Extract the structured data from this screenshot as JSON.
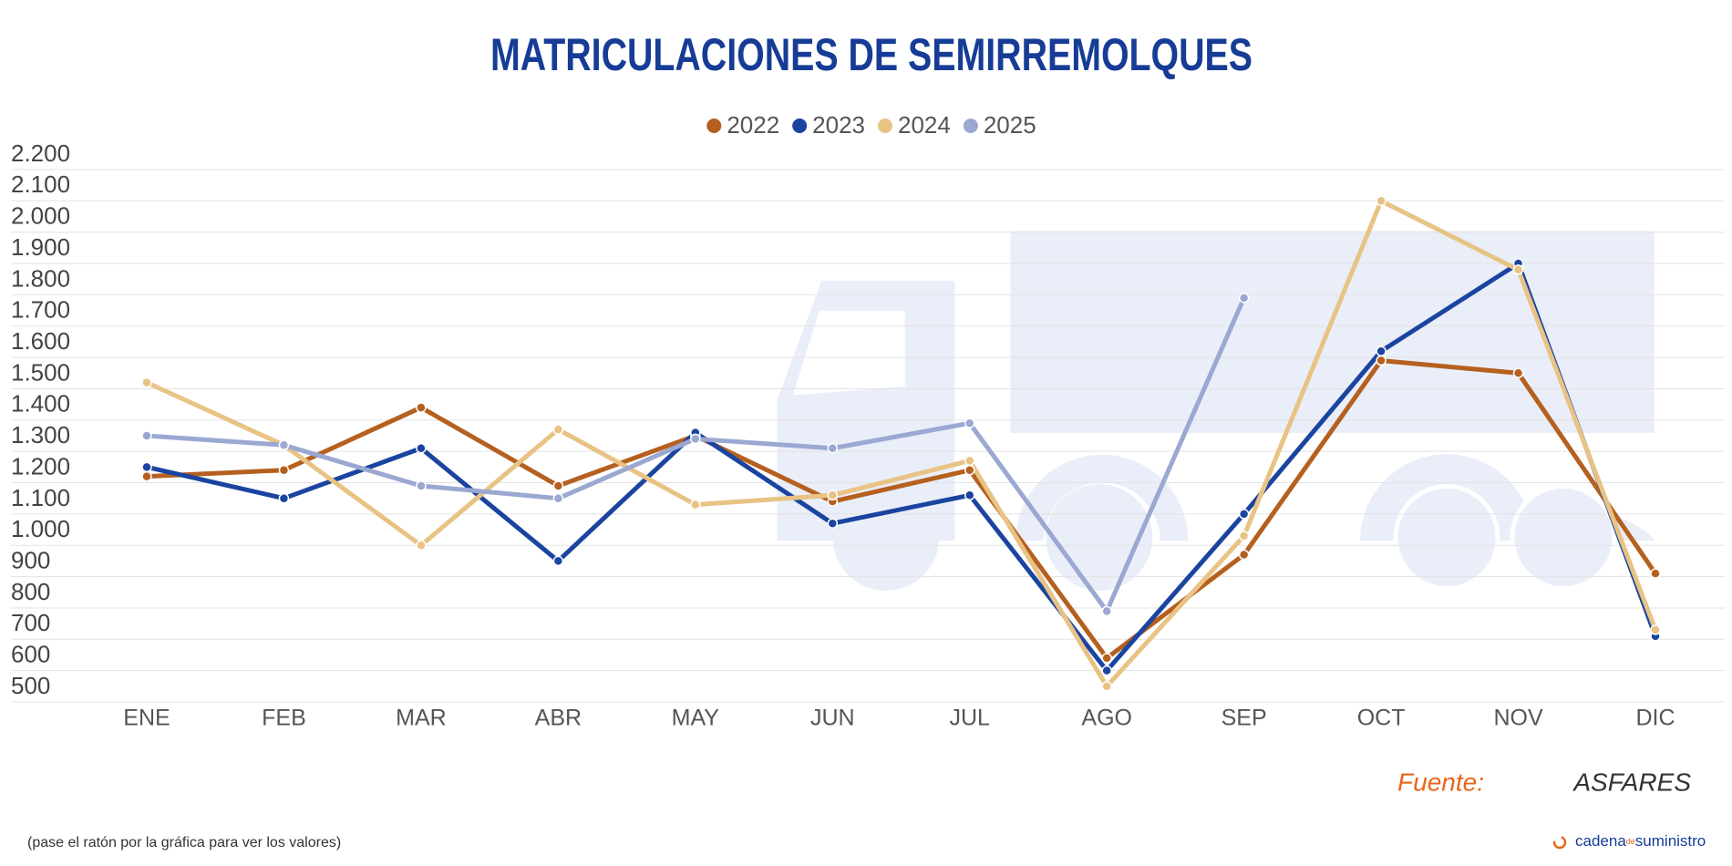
{
  "chart_data": {
    "type": "line",
    "title": "MATRICULACIONES DE SEMIRREMOLQUES",
    "categories": [
      "ENE",
      "FEB",
      "MAR",
      "ABR",
      "MAY",
      "JUN",
      "JUL",
      "AGO",
      "SEP",
      "OCT",
      "NOV",
      "DIC"
    ],
    "series": [
      {
        "name": "2022",
        "color": "#b5601f",
        "values": [
          1220,
          1240,
          1440,
          1190,
          1350,
          1140,
          1240,
          640,
          970,
          1590,
          1550,
          910
        ]
      },
      {
        "name": "2023",
        "color": "#1a44a0",
        "values": [
          1250,
          1150,
          1310,
          950,
          1360,
          1070,
          1160,
          600,
          1100,
          1620,
          1900,
          710
        ]
      },
      {
        "name": "2024",
        "color": "#e8c384",
        "values": [
          1520,
          1320,
          1000,
          1370,
          1130,
          1160,
          1270,
          550,
          1030,
          2100,
          1880,
          730
        ]
      },
      {
        "name": "2025",
        "color": "#9aa8d2",
        "values": [
          1350,
          1320,
          1190,
          1150,
          1340,
          1310,
          1390,
          790,
          1790,
          null,
          null,
          null
        ]
      }
    ],
    "ylim": [
      500,
      2200
    ],
    "yticks": [
      500,
      600,
      700,
      800,
      900,
      {
        "value": 1000,
        "label": "1.000"
      },
      {
        "value": 1100,
        "label": "1.100"
      },
      {
        "value": 1200,
        "label": "1.200"
      },
      {
        "value": 1300,
        "label": "1.300"
      },
      {
        "value": 1400,
        "label": "1.400"
      },
      {
        "value": 1500,
        "label": "1.500"
      },
      {
        "value": 1600,
        "label": "1.600"
      },
      {
        "value": 1700,
        "label": "1.700"
      },
      {
        "value": 1800,
        "label": "1.800"
      },
      {
        "value": 1900,
        "label": "1.900"
      },
      {
        "value": 2000,
        "label": "2.000"
      },
      {
        "value": 2100,
        "label": "2.100"
      },
      {
        "value": 2200,
        "label": "2.200"
      }
    ],
    "grid": true,
    "legend": "top",
    "source_label": "Fuente:",
    "source": "ASFARES",
    "note": "(pase el ratón por la gráfica para ver los valores)",
    "logo": [
      "cadena",
      "de",
      "suministro"
    ]
  }
}
